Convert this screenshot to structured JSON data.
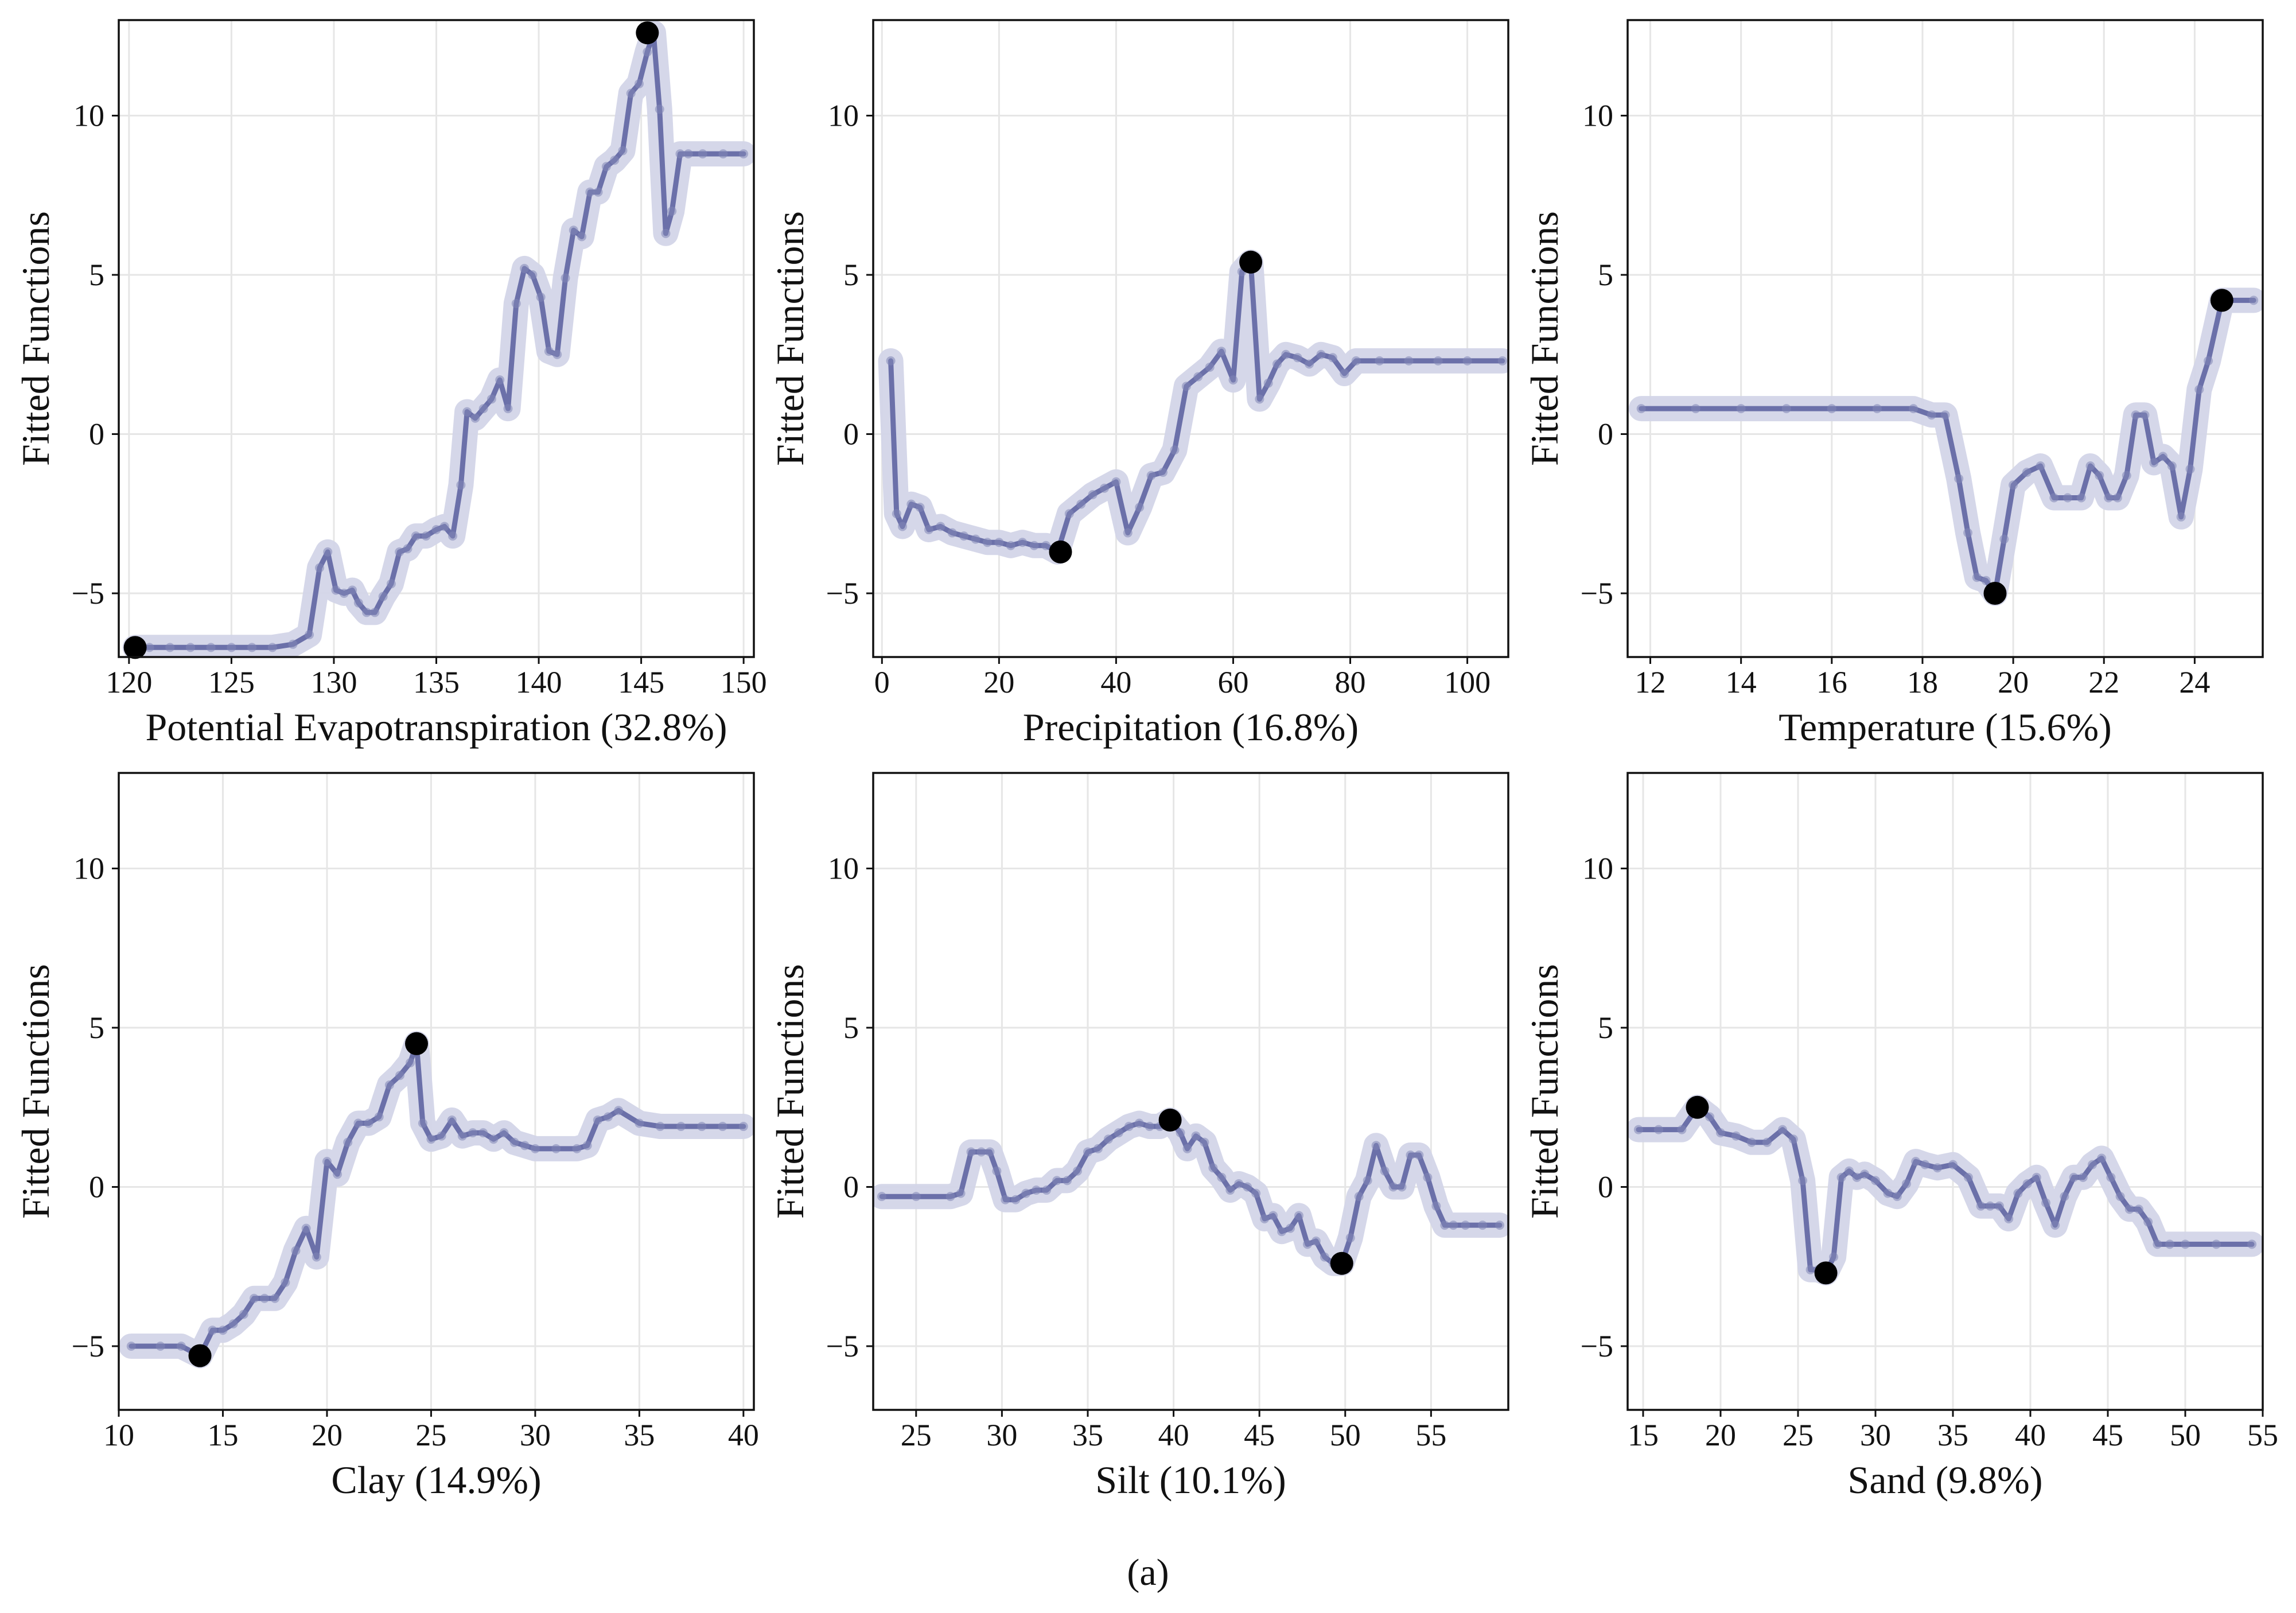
{
  "caption": "(a)",
  "colors": {
    "line": "#6b70a9",
    "band": "#d3d5e8",
    "point": "#8286b6",
    "extreme": "#000000",
    "grid": "#e6e6e6",
    "frame": "#111111"
  },
  "chart_data": [
    {
      "type": "line",
      "title": "",
      "xlabel": "Potential Evapotranspiration  (32.8%)",
      "ylabel": "Fitted Functions",
      "xlim": [
        119.5,
        150.5
      ],
      "ylim": [
        -7,
        13
      ],
      "xticks": [
        120,
        125,
        130,
        135,
        140,
        145,
        150
      ],
      "yticks": [
        -5,
        0,
        5,
        10
      ],
      "grid": true,
      "series": [
        {
          "x": [
            120.3,
            121,
            122,
            123,
            124,
            125,
            126,
            127,
            128,
            128.8,
            129.3,
            129.7,
            130.1,
            130.5,
            130.9,
            131.2,
            131.6,
            132.0,
            132.4,
            132.8,
            133.2,
            133.6,
            134.0,
            134.5,
            135.0,
            135.4,
            135.8,
            136.2,
            136.5,
            136.9,
            137.3,
            137.7,
            138.1,
            138.5,
            138.9,
            139.3,
            139.7,
            140.1,
            140.5,
            140.9,
            141.3,
            141.7,
            142.1,
            142.5,
            142.9,
            143.3,
            143.7,
            144.1,
            144.5,
            144.9,
            145.3,
            145.6,
            145.9,
            146.2,
            146.5,
            146.9,
            147.3,
            148,
            149,
            150
          ],
          "y": [
            -6.7,
            -6.7,
            -6.7,
            -6.7,
            -6.7,
            -6.7,
            -6.7,
            -6.7,
            -6.6,
            -6.3,
            -4.2,
            -3.7,
            -4.9,
            -5.0,
            -4.9,
            -5.3,
            -5.6,
            -5.6,
            -5.1,
            -4.7,
            -3.7,
            -3.6,
            -3.2,
            -3.2,
            -3.0,
            -2.9,
            -3.2,
            -1.6,
            0.7,
            0.5,
            0.8,
            1.1,
            1.7,
            0.8,
            4.1,
            5.2,
            5.0,
            4.3,
            2.6,
            2.5,
            4.9,
            6.4,
            6.2,
            7.6,
            7.6,
            8.4,
            8.6,
            8.9,
            10.7,
            11.0,
            12.0,
            12.6,
            10.2,
            6.3,
            7.0,
            8.8,
            8.8,
            8.8,
            8.8,
            8.8
          ]
        }
      ],
      "extremes": [
        {
          "x": 120.3,
          "y": -6.7
        },
        {
          "x": 145.3,
          "y": 12.6
        }
      ]
    },
    {
      "type": "line",
      "title": "",
      "xlabel": "Precipitation (16.8%)",
      "ylabel": "Fitted Functions",
      "xlim": [
        -1.5,
        107
      ],
      "ylim": [
        -7,
        13
      ],
      "xticks": [
        0,
        20,
        40,
        60,
        80,
        100
      ],
      "yticks": [
        -5,
        0,
        5,
        10
      ],
      "grid": true,
      "series": [
        {
          "x": [
            1.5,
            2.5,
            3.5,
            5,
            6.5,
            8,
            10,
            12,
            14,
            16,
            18,
            20,
            22,
            24,
            26,
            28,
            30,
            32,
            34,
            36,
            38,
            40,
            42,
            44,
            46,
            48,
            50,
            52,
            54,
            56,
            58,
            60,
            61.5,
            63,
            64.5,
            66,
            67.5,
            69,
            71,
            73,
            75,
            77,
            79,
            81,
            85,
            90,
            95,
            100,
            106
          ],
          "y": [
            2.3,
            -2.5,
            -2.9,
            -2.2,
            -2.3,
            -3.0,
            -2.9,
            -3.1,
            -3.2,
            -3.3,
            -3.4,
            -3.4,
            -3.5,
            -3.4,
            -3.5,
            -3.5,
            -3.7,
            -2.5,
            -2.2,
            -1.9,
            -1.7,
            -1.5,
            -3.1,
            -2.3,
            -1.3,
            -1.2,
            -0.5,
            1.5,
            1.8,
            2.1,
            2.6,
            1.7,
            5.1,
            5.4,
            1.1,
            1.6,
            2.2,
            2.5,
            2.4,
            2.2,
            2.5,
            2.4,
            1.9,
            2.3,
            2.3,
            2.3,
            2.3,
            2.3,
            2.3
          ]
        }
      ],
      "extremes": [
        {
          "x": 30.5,
          "y": -3.7
        },
        {
          "x": 63,
          "y": 5.4
        }
      ]
    },
    {
      "type": "line",
      "title": "",
      "xlabel": "Temperature (15.6%)",
      "ylabel": "Fitted Functions",
      "xlim": [
        11.5,
        25.5
      ],
      "ylim": [
        -7,
        13
      ],
      "xticks": [
        12,
        14,
        16,
        18,
        20,
        22,
        24
      ],
      "yticks": [
        -5,
        0,
        5,
        10
      ],
      "grid": true,
      "series": [
        {
          "x": [
            11.8,
            13,
            14,
            15,
            16,
            17,
            17.8,
            18.2,
            18.5,
            18.8,
            19.0,
            19.2,
            19.4,
            19.6,
            19.8,
            20.0,
            20.3,
            20.6,
            20.9,
            21.2,
            21.5,
            21.7,
            21.9,
            22.1,
            22.3,
            22.5,
            22.7,
            22.9,
            23.1,
            23.3,
            23.5,
            23.7,
            23.9,
            24.1,
            24.3,
            24.6,
            25.3
          ],
          "y": [
            0.8,
            0.8,
            0.8,
            0.8,
            0.8,
            0.8,
            0.8,
            0.6,
            0.6,
            -1.4,
            -3.1,
            -4.5,
            -4.6,
            -5.0,
            -3.3,
            -1.6,
            -1.2,
            -1.0,
            -2.0,
            -2.0,
            -2.0,
            -1.0,
            -1.3,
            -2.0,
            -2.0,
            -1.3,
            0.6,
            0.6,
            -0.9,
            -0.7,
            -1.0,
            -2.6,
            -1.1,
            1.4,
            2.3,
            4.2,
            4.2
          ]
        }
      ],
      "extremes": [
        {
          "x": 19.6,
          "y": -5.0
        },
        {
          "x": 24.6,
          "y": 4.2
        }
      ]
    },
    {
      "type": "line",
      "title": "",
      "xlabel": "Clay (14.9%)",
      "ylabel": "Fitted Functions",
      "xlim": [
        10,
        40.5
      ],
      "ylim": [
        -7,
        13
      ],
      "xticks": [
        10,
        15,
        20,
        25,
        30,
        35,
        40
      ],
      "yticks": [
        -5,
        0,
        5,
        10
      ],
      "grid": true,
      "series": [
        {
          "x": [
            10.6,
            12,
            13,
            13.9,
            14.5,
            15,
            15.5,
            16,
            16.5,
            17,
            17.5,
            18,
            18.5,
            19,
            19.5,
            20,
            20.5,
            21,
            21.5,
            22,
            22.5,
            23,
            23.5,
            24,
            24.3,
            24.6,
            25.0,
            25.5,
            26,
            26.5,
            27,
            27.5,
            28,
            28.5,
            29,
            29.5,
            30,
            31,
            32,
            32.5,
            33,
            33.5,
            34,
            35,
            36,
            37,
            38,
            39,
            40
          ],
          "y": [
            -5.0,
            -5.0,
            -5.0,
            -5.3,
            -4.5,
            -4.5,
            -4.3,
            -4.0,
            -3.5,
            -3.5,
            -3.5,
            -3.0,
            -2.0,
            -1.3,
            -2.2,
            0.8,
            0.4,
            1.4,
            2.0,
            2.0,
            2.2,
            3.2,
            3.5,
            3.9,
            4.5,
            2.0,
            1.5,
            1.6,
            2.1,
            1.6,
            1.7,
            1.7,
            1.5,
            1.7,
            1.4,
            1.3,
            1.2,
            1.2,
            1.2,
            1.3,
            2.1,
            2.2,
            2.4,
            2.0,
            1.9,
            1.9,
            1.9,
            1.9,
            1.9
          ]
        }
      ],
      "extremes": [
        {
          "x": 13.9,
          "y": -5.3
        },
        {
          "x": 24.3,
          "y": 4.5
        }
      ]
    },
    {
      "type": "line",
      "title": "",
      "xlabel": "Silt (10.1%)",
      "ylabel": "Fitted Functions",
      "xlim": [
        22.5,
        59.5
      ],
      "ylim": [
        -7,
        13
      ],
      "xticks": [
        25,
        30,
        35,
        40,
        45,
        50,
        55
      ],
      "yticks": [
        -5,
        0,
        5,
        10
      ],
      "grid": true,
      "series": [
        {
          "x": [
            23,
            25,
            27,
            27.6,
            28.2,
            28.8,
            29.3,
            29.7,
            30.2,
            30.8,
            31.4,
            32,
            32.6,
            33.2,
            33.8,
            34.4,
            35,
            35.6,
            36.2,
            36.8,
            37.4,
            38,
            38.6,
            39.2,
            39.8,
            40.4,
            40.8,
            41.3,
            41.8,
            42.3,
            42.8,
            43.3,
            43.8,
            44.3,
            44.8,
            45.3,
            45.8,
            46.3,
            46.8,
            47.3,
            47.8,
            48.3,
            48.8,
            49.3,
            49.8,
            50.3,
            50.8,
            51.3,
            51.8,
            52.3,
            52.8,
            53.3,
            53.8,
            54.3,
            54.8,
            55.3,
            55.8,
            56.3,
            57,
            58,
            59
          ],
          "y": [
            -0.3,
            -0.3,
            -0.3,
            -0.2,
            1.1,
            1.1,
            1.1,
            0.5,
            -0.4,
            -0.4,
            -0.2,
            -0.1,
            -0.1,
            0.2,
            0.2,
            0.5,
            1.1,
            1.2,
            1.5,
            1.7,
            1.9,
            2.0,
            1.9,
            1.9,
            2.1,
            1.7,
            1.2,
            1.6,
            1.4,
            0.6,
            0.3,
            -0.1,
            0.1,
            0.0,
            -0.2,
            -1.0,
            -0.9,
            -1.4,
            -1.3,
            -0.9,
            -1.8,
            -1.7,
            -2.2,
            -2.4,
            -2.4,
            -1.6,
            -0.3,
            0.2,
            1.3,
            0.5,
            0.0,
            0.0,
            1.0,
            1.0,
            0.3,
            -0.6,
            -1.2,
            -1.2,
            -1.2,
            -1.2,
            -1.2
          ]
        }
      ],
      "extremes": [
        {
          "x": 39.8,
          "y": 2.1
        },
        {
          "x": 49.8,
          "y": -2.4
        }
      ]
    },
    {
      "type": "line",
      "title": "",
      "xlabel": "Sand (9.8%)",
      "ylabel": "Fitted Functions",
      "xlim": [
        14,
        55
      ],
      "ylim": [
        -7,
        13
      ],
      "xticks": [
        15,
        20,
        25,
        30,
        35,
        40,
        45,
        50,
        55
      ],
      "yticks": [
        -5,
        0,
        5,
        10
      ],
      "grid": true,
      "series": [
        {
          "x": [
            14.7,
            16,
            17.5,
            18.5,
            19.3,
            20,
            21,
            22,
            23,
            24,
            24.7,
            25.3,
            25.8,
            26.3,
            26.8,
            27.3,
            27.8,
            28.3,
            28.8,
            29.3,
            30,
            30.8,
            31.4,
            32,
            32.6,
            33.2,
            34,
            35,
            36,
            36.8,
            37.4,
            38,
            38.6,
            39.2,
            39.8,
            40.4,
            41,
            41.6,
            42.2,
            42.8,
            43.4,
            44,
            44.6,
            45.2,
            45.8,
            46.4,
            47,
            47.6,
            48.2,
            49,
            50,
            52,
            54.3
          ],
          "y": [
            1.8,
            1.8,
            1.8,
            2.5,
            2.2,
            1.7,
            1.6,
            1.4,
            1.4,
            1.8,
            1.5,
            0.2,
            -2.6,
            -2.6,
            -2.7,
            -2.2,
            0.3,
            0.5,
            0.3,
            0.4,
            0.2,
            -0.2,
            -0.3,
            0.1,
            0.8,
            0.7,
            0.6,
            0.7,
            0.3,
            -0.6,
            -0.6,
            -0.6,
            -1.0,
            -0.2,
            0.1,
            0.3,
            -0.5,
            -1.2,
            -0.3,
            0.3,
            0.3,
            0.7,
            0.9,
            0.3,
            -0.3,
            -0.7,
            -0.7,
            -1.1,
            -1.8,
            -1.8,
            -1.8,
            -1.8,
            -1.8
          ]
        }
      ],
      "extremes": [
        {
          "x": 18.5,
          "y": 2.5
        },
        {
          "x": 26.8,
          "y": -2.7
        }
      ]
    }
  ]
}
